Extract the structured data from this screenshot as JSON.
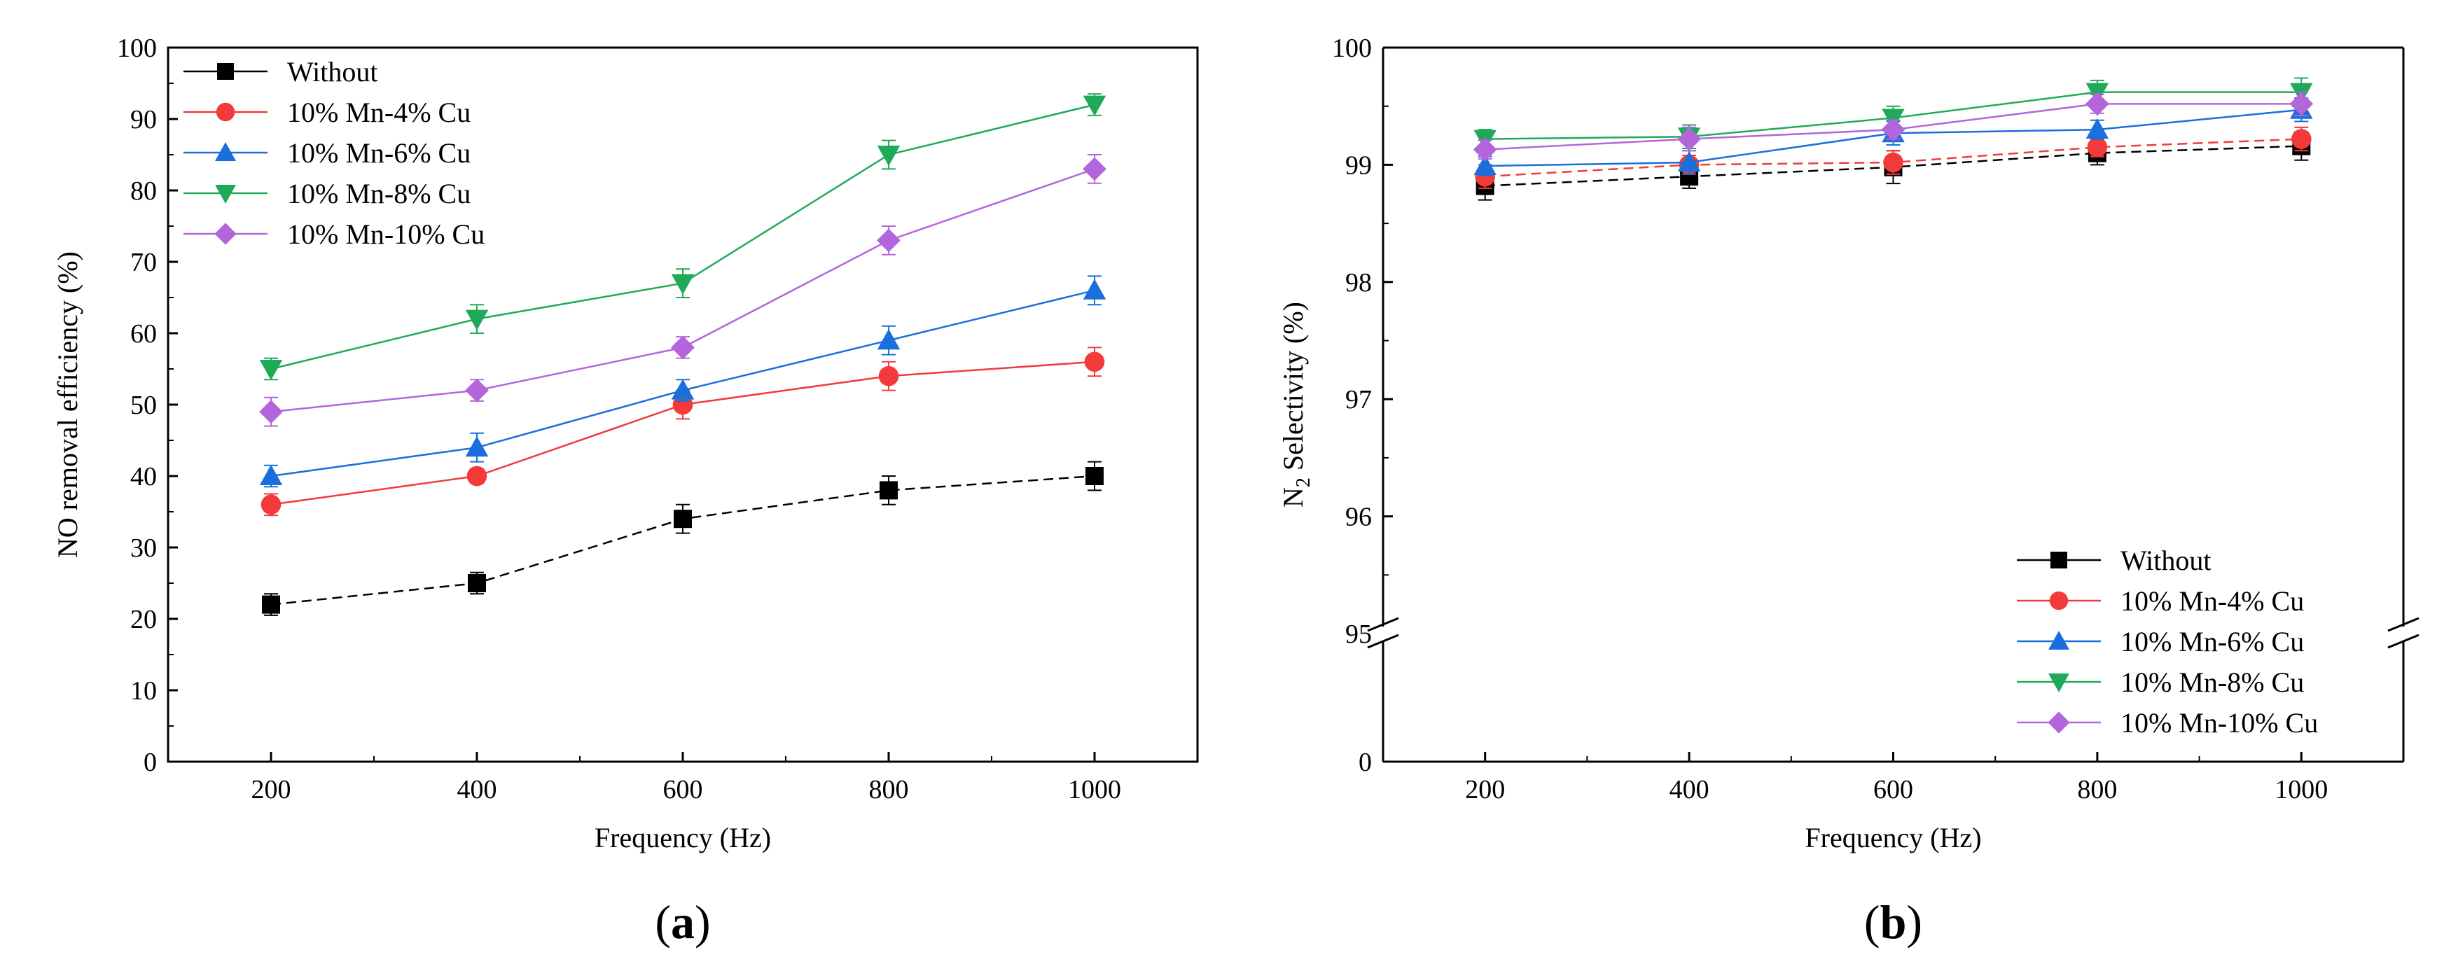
{
  "chart_data": [
    {
      "type": "line",
      "panel_label": "a",
      "title": "",
      "xlabel": "Frequency (Hz)",
      "ylabel": "NO removal efficiency (%)",
      "x": [
        200,
        400,
        600,
        800,
        1000
      ],
      "x_ticks": [
        "200",
        "400",
        "600",
        "800",
        "1000"
      ],
      "xlim": [
        100,
        1100
      ],
      "ylim": [
        0,
        100
      ],
      "y_ticks": [
        "0",
        "10",
        "20",
        "30",
        "40",
        "50",
        "60",
        "70",
        "80",
        "90",
        "100"
      ],
      "legend_position": "top-left",
      "grid": false,
      "series": [
        {
          "name": "Without",
          "values": [
            22,
            25,
            34,
            38,
            40
          ],
          "errors": [
            1.5,
            1.5,
            2,
            2,
            2
          ],
          "color": "#000000",
          "marker": "square",
          "dash": "dashed"
        },
        {
          "name": "10% Mn-4% Cu",
          "values": [
            36,
            40,
            50,
            54,
            56
          ],
          "errors": [
            1.5,
            1,
            2,
            2,
            2
          ],
          "color": "#f33a3a",
          "marker": "circle",
          "dash": "solid"
        },
        {
          "name": "10% Mn-6% Cu",
          "values": [
            40,
            44,
            52,
            59,
            66
          ],
          "errors": [
            1.5,
            2,
            1.5,
            2,
            2
          ],
          "color": "#1a6fdc",
          "marker": "triangle-up",
          "dash": "solid"
        },
        {
          "name": "10% Mn-8% Cu",
          "values": [
            55,
            62,
            67,
            85,
            92
          ],
          "errors": [
            1.5,
            2,
            2,
            2,
            1.5
          ],
          "color": "#1faa59",
          "marker": "triangle-down",
          "dash": "solid"
        },
        {
          "name": "10% Mn-10% Cu",
          "values": [
            49,
            52,
            58,
            73,
            83
          ],
          "errors": [
            2,
            1.5,
            1.5,
            2,
            2
          ],
          "color": "#b366db",
          "marker": "diamond",
          "dash": "solid"
        }
      ]
    },
    {
      "type": "line",
      "panel_label": "b",
      "title": "",
      "xlabel": "Frequency (Hz)",
      "ylabel_main": "N",
      "ylabel_sub": "2",
      "ylabel_rest": " Selectivity (%)",
      "x": [
        200,
        400,
        600,
        800,
        1000
      ],
      "x_ticks": [
        "200",
        "400",
        "600",
        "800",
        "1000"
      ],
      "xlim": [
        100,
        1100
      ],
      "ylim": [
        0,
        100
      ],
      "y_axis_break": [
        0,
        95
      ],
      "y_ticks": [
        "0",
        "95",
        "96",
        "97",
        "98",
        "99",
        "100"
      ],
      "legend_position": "bottom-right",
      "grid": false,
      "series": [
        {
          "name": "Without",
          "values": [
            98.82,
            98.9,
            98.98,
            99.1,
            99.16
          ],
          "errors": [
            0.12,
            0.1,
            0.14,
            0.1,
            0.12
          ],
          "color": "#000000",
          "marker": "square",
          "dash": "dashed"
        },
        {
          "name": "10% Mn-4% Cu",
          "values": [
            98.9,
            99.0,
            99.02,
            99.15,
            99.22
          ],
          "errors": [
            0.1,
            0.08,
            0.1,
            0.08,
            0.1
          ],
          "color": "#f33a3a",
          "marker": "circle",
          "dash": "dashed"
        },
        {
          "name": "10% Mn-6% Cu",
          "values": [
            98.99,
            99.02,
            99.27,
            99.3,
            99.47
          ],
          "errors": [
            0.08,
            0.1,
            0.1,
            0.08,
            0.1
          ],
          "color": "#1a6fdc",
          "marker": "triangle-up",
          "dash": "solid"
        },
        {
          "name": "10% Mn-8% Cu",
          "values": [
            99.22,
            99.24,
            99.4,
            99.62,
            99.62
          ],
          "errors": [
            0.08,
            0.1,
            0.1,
            0.1,
            0.12
          ],
          "color": "#1faa59",
          "marker": "triangle-down",
          "dash": "solid"
        },
        {
          "name": "10% Mn-10% Cu",
          "values": [
            99.13,
            99.22,
            99.3,
            99.52,
            99.52
          ],
          "errors": [
            0.08,
            0.1,
            0.08,
            0.08,
            0.1
          ],
          "color": "#b366db",
          "marker": "diamond",
          "dash": "solid"
        }
      ]
    }
  ]
}
